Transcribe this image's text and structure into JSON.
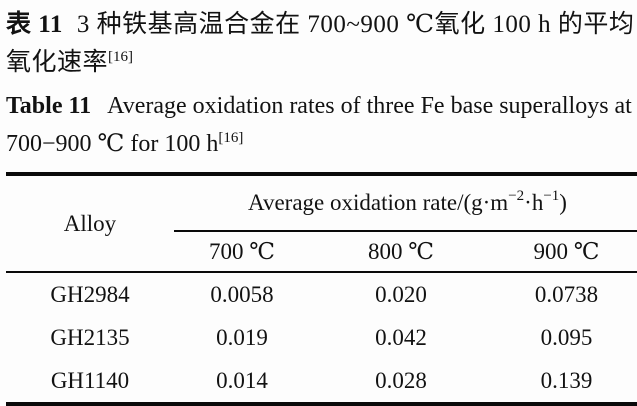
{
  "page": {
    "background": "#fdfdfd",
    "text_color": "#121212",
    "rule_color": "#0a0a0a"
  },
  "caption_zh": {
    "label": "表 11",
    "text": "3 种铁基高温合金在 700~900 ℃氧化 100 h 的平均氧化速率",
    "ref_sup": "[16]"
  },
  "caption_en": {
    "label": "Table 11",
    "text": "Average oxidation rates of three Fe base superalloys at 700−900 ℃ for 100 h",
    "ref_sup": "[16]"
  },
  "table": {
    "col1_header": "Alloy",
    "group_header": {
      "main": "Average oxidation rate/(g·m",
      "sup1": "−2",
      "mid": "·h",
      "sup2": "−1",
      "end": ")"
    },
    "sub_headers": [
      "700 ℃",
      "800 ℃",
      "900 ℃"
    ],
    "rows": [
      {
        "alloy": "GH2984",
        "values": [
          "0.0058",
          "0.020",
          "0.0738"
        ]
      },
      {
        "alloy": "GH2135",
        "values": [
          "0.019",
          "0.042",
          "0.095"
        ]
      },
      {
        "alloy": "GH1140",
        "values": [
          "0.014",
          "0.028",
          "0.139"
        ]
      }
    ]
  }
}
